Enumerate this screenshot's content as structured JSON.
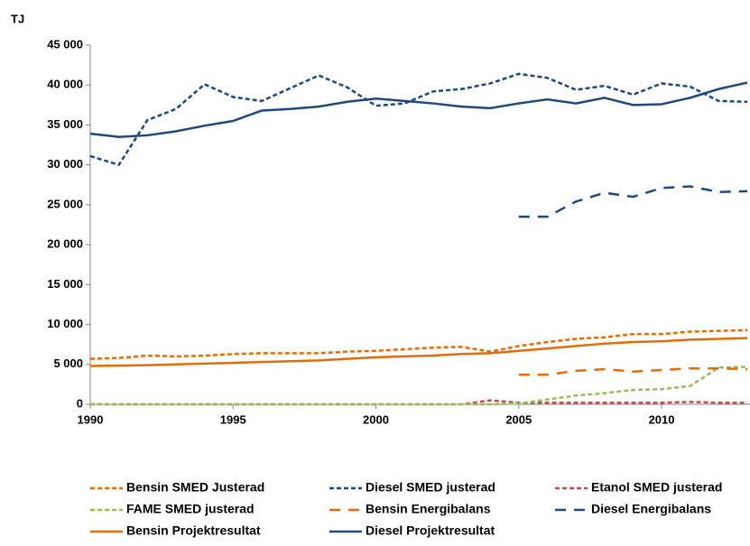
{
  "chart_data": {
    "type": "line",
    "y_unit": "TJ",
    "x": [
      1990,
      1991,
      1992,
      1993,
      1994,
      1995,
      1996,
      1997,
      1998,
      1999,
      2000,
      2001,
      2002,
      2003,
      2004,
      2005,
      2006,
      2007,
      2008,
      2009,
      2010,
      2011,
      2012,
      2013
    ],
    "xlim": [
      1990,
      2013
    ],
    "xticks": [
      1990,
      1995,
      2000,
      2005,
      2010
    ],
    "ylim": [
      0,
      45000
    ],
    "yticks": [
      0,
      {
        "value": 5000,
        "label": "5 000"
      },
      {
        "value": 10000,
        "label": "10 000"
      },
      {
        "value": 15000,
        "label": "15 000"
      },
      {
        "value": 20000,
        "label": "20 000"
      },
      {
        "value": 25000,
        "label": "25 000"
      },
      {
        "value": 30000,
        "label": "30 000"
      },
      {
        "value": 35000,
        "label": "35 000"
      },
      {
        "value": 40000,
        "label": "40 000"
      },
      {
        "value": 45000,
        "label": "45 000"
      }
    ],
    "grid": false,
    "series": [
      {
        "name": "Bensin SMED Justerad",
        "color": "#e36c09",
        "dash": "short",
        "values": [
          5700,
          5800,
          6100,
          6000,
          6100,
          6300,
          6400,
          6400,
          6400,
          6600,
          6700,
          6900,
          7100,
          7200,
          6600,
          7300,
          7800,
          8200,
          8400,
          8800,
          8800,
          9100,
          9200,
          9300
        ]
      },
      {
        "name": "Diesel SMED justerad",
        "color": "#1f497d",
        "dash": "short",
        "values": [
          31100,
          30000,
          35600,
          37000,
          40100,
          38500,
          38000,
          39600,
          41200,
          39700,
          37400,
          37700,
          39200,
          39500,
          40200,
          41400,
          40900,
          39400,
          39900,
          38800,
          40200,
          39800,
          38000,
          37900
        ]
      },
      {
        "name": "Etanol SMED justerad",
        "color": "#c0504d",
        "dash": "short",
        "values": [
          0,
          0,
          0,
          0,
          0,
          0,
          0,
          0,
          0,
          0,
          0,
          0,
          0,
          0,
          500,
          200,
          200,
          200,
          200,
          200,
          200,
          300,
          200,
          200
        ]
      },
      {
        "name": "FAME SMED justerad",
        "color": "#9bbb59",
        "dash": "short",
        "values": [
          0,
          0,
          0,
          0,
          0,
          0,
          0,
          0,
          0,
          0,
          0,
          0,
          0,
          0,
          0,
          100,
          600,
          1100,
          1400,
          1800,
          1900,
          2300,
          4600,
          4700
        ]
      },
      {
        "name": "Bensin Energibalans",
        "color": "#e36c09",
        "dash": "long",
        "values": [
          null,
          null,
          null,
          null,
          null,
          null,
          null,
          null,
          null,
          null,
          null,
          null,
          null,
          null,
          null,
          3700,
          3700,
          4200,
          4400,
          4100,
          4300,
          4500,
          4500,
          4400
        ]
      },
      {
        "name": "Diesel Energibalans",
        "color": "#1f497d",
        "dash": "long",
        "values": [
          null,
          null,
          null,
          null,
          null,
          null,
          null,
          null,
          null,
          null,
          null,
          null,
          null,
          null,
          null,
          23500,
          23500,
          25400,
          26500,
          26000,
          27100,
          27300,
          26600,
          26700
        ]
      },
      {
        "name": "Bensin Projektresultat",
        "color": "#e36c09",
        "dash": "solid",
        "values": [
          4800,
          4850,
          4900,
          5000,
          5100,
          5200,
          5300,
          5400,
          5500,
          5700,
          5900,
          6000,
          6100,
          6300,
          6400,
          6700,
          7000,
          7300,
          7600,
          7800,
          7900,
          8100,
          8200,
          8300
        ]
      },
      {
        "name": "Diesel Projektresultat",
        "color": "#1f497d",
        "dash": "solid",
        "values": [
          33900,
          33500,
          33700,
          34200,
          34900,
          35500,
          36800,
          37000,
          37300,
          37900,
          38300,
          38000,
          37700,
          37300,
          37100,
          37700,
          38200,
          37700,
          38400,
          37500,
          37600,
          38400,
          39500,
          40300
        ]
      }
    ]
  }
}
